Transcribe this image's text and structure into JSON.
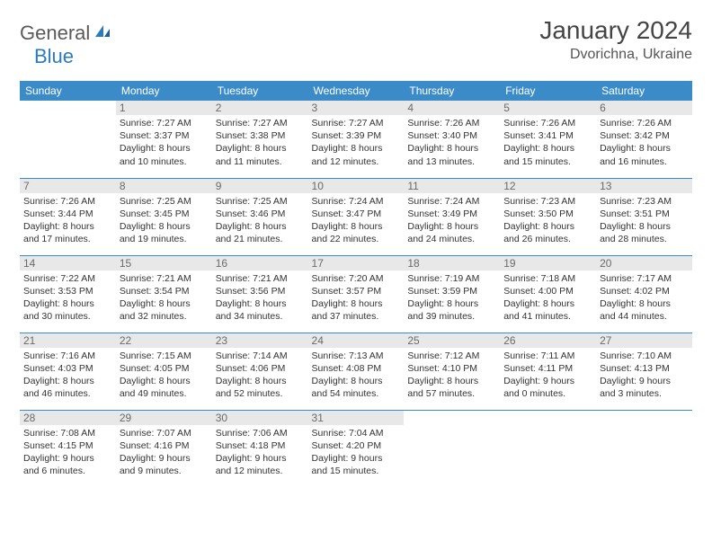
{
  "logo": {
    "general": "General",
    "blue": "Blue"
  },
  "header": {
    "title": "January 2024",
    "location": "Dvorichna, Ukraine"
  },
  "colors": {
    "header_bg": "#3b8bc9",
    "daynum_bg": "#e8e8e8",
    "rule": "#3b8bc9"
  },
  "weekdays": [
    "Sunday",
    "Monday",
    "Tuesday",
    "Wednesday",
    "Thursday",
    "Friday",
    "Saturday"
  ],
  "weeks": [
    [
      null,
      {
        "n": "1",
        "sr": "Sunrise: 7:27 AM",
        "ss": "Sunset: 3:37 PM",
        "d1": "Daylight: 8 hours",
        "d2": "and 10 minutes."
      },
      {
        "n": "2",
        "sr": "Sunrise: 7:27 AM",
        "ss": "Sunset: 3:38 PM",
        "d1": "Daylight: 8 hours",
        "d2": "and 11 minutes."
      },
      {
        "n": "3",
        "sr": "Sunrise: 7:27 AM",
        "ss": "Sunset: 3:39 PM",
        "d1": "Daylight: 8 hours",
        "d2": "and 12 minutes."
      },
      {
        "n": "4",
        "sr": "Sunrise: 7:26 AM",
        "ss": "Sunset: 3:40 PM",
        "d1": "Daylight: 8 hours",
        "d2": "and 13 minutes."
      },
      {
        "n": "5",
        "sr": "Sunrise: 7:26 AM",
        "ss": "Sunset: 3:41 PM",
        "d1": "Daylight: 8 hours",
        "d2": "and 15 minutes."
      },
      {
        "n": "6",
        "sr": "Sunrise: 7:26 AM",
        "ss": "Sunset: 3:42 PM",
        "d1": "Daylight: 8 hours",
        "d2": "and 16 minutes."
      }
    ],
    [
      {
        "n": "7",
        "sr": "Sunrise: 7:26 AM",
        "ss": "Sunset: 3:44 PM",
        "d1": "Daylight: 8 hours",
        "d2": "and 17 minutes."
      },
      {
        "n": "8",
        "sr": "Sunrise: 7:25 AM",
        "ss": "Sunset: 3:45 PM",
        "d1": "Daylight: 8 hours",
        "d2": "and 19 minutes."
      },
      {
        "n": "9",
        "sr": "Sunrise: 7:25 AM",
        "ss": "Sunset: 3:46 PM",
        "d1": "Daylight: 8 hours",
        "d2": "and 21 minutes."
      },
      {
        "n": "10",
        "sr": "Sunrise: 7:24 AM",
        "ss": "Sunset: 3:47 PM",
        "d1": "Daylight: 8 hours",
        "d2": "and 22 minutes."
      },
      {
        "n": "11",
        "sr": "Sunrise: 7:24 AM",
        "ss": "Sunset: 3:49 PM",
        "d1": "Daylight: 8 hours",
        "d2": "and 24 minutes."
      },
      {
        "n": "12",
        "sr": "Sunrise: 7:23 AM",
        "ss": "Sunset: 3:50 PM",
        "d1": "Daylight: 8 hours",
        "d2": "and 26 minutes."
      },
      {
        "n": "13",
        "sr": "Sunrise: 7:23 AM",
        "ss": "Sunset: 3:51 PM",
        "d1": "Daylight: 8 hours",
        "d2": "and 28 minutes."
      }
    ],
    [
      {
        "n": "14",
        "sr": "Sunrise: 7:22 AM",
        "ss": "Sunset: 3:53 PM",
        "d1": "Daylight: 8 hours",
        "d2": "and 30 minutes."
      },
      {
        "n": "15",
        "sr": "Sunrise: 7:21 AM",
        "ss": "Sunset: 3:54 PM",
        "d1": "Daylight: 8 hours",
        "d2": "and 32 minutes."
      },
      {
        "n": "16",
        "sr": "Sunrise: 7:21 AM",
        "ss": "Sunset: 3:56 PM",
        "d1": "Daylight: 8 hours",
        "d2": "and 34 minutes."
      },
      {
        "n": "17",
        "sr": "Sunrise: 7:20 AM",
        "ss": "Sunset: 3:57 PM",
        "d1": "Daylight: 8 hours",
        "d2": "and 37 minutes."
      },
      {
        "n": "18",
        "sr": "Sunrise: 7:19 AM",
        "ss": "Sunset: 3:59 PM",
        "d1": "Daylight: 8 hours",
        "d2": "and 39 minutes."
      },
      {
        "n": "19",
        "sr": "Sunrise: 7:18 AM",
        "ss": "Sunset: 4:00 PM",
        "d1": "Daylight: 8 hours",
        "d2": "and 41 minutes."
      },
      {
        "n": "20",
        "sr": "Sunrise: 7:17 AM",
        "ss": "Sunset: 4:02 PM",
        "d1": "Daylight: 8 hours",
        "d2": "and 44 minutes."
      }
    ],
    [
      {
        "n": "21",
        "sr": "Sunrise: 7:16 AM",
        "ss": "Sunset: 4:03 PM",
        "d1": "Daylight: 8 hours",
        "d2": "and 46 minutes."
      },
      {
        "n": "22",
        "sr": "Sunrise: 7:15 AM",
        "ss": "Sunset: 4:05 PM",
        "d1": "Daylight: 8 hours",
        "d2": "and 49 minutes."
      },
      {
        "n": "23",
        "sr": "Sunrise: 7:14 AM",
        "ss": "Sunset: 4:06 PM",
        "d1": "Daylight: 8 hours",
        "d2": "and 52 minutes."
      },
      {
        "n": "24",
        "sr": "Sunrise: 7:13 AM",
        "ss": "Sunset: 4:08 PM",
        "d1": "Daylight: 8 hours",
        "d2": "and 54 minutes."
      },
      {
        "n": "25",
        "sr": "Sunrise: 7:12 AM",
        "ss": "Sunset: 4:10 PM",
        "d1": "Daylight: 8 hours",
        "d2": "and 57 minutes."
      },
      {
        "n": "26",
        "sr": "Sunrise: 7:11 AM",
        "ss": "Sunset: 4:11 PM",
        "d1": "Daylight: 9 hours",
        "d2": "and 0 minutes."
      },
      {
        "n": "27",
        "sr": "Sunrise: 7:10 AM",
        "ss": "Sunset: 4:13 PM",
        "d1": "Daylight: 9 hours",
        "d2": "and 3 minutes."
      }
    ],
    [
      {
        "n": "28",
        "sr": "Sunrise: 7:08 AM",
        "ss": "Sunset: 4:15 PM",
        "d1": "Daylight: 9 hours",
        "d2": "and 6 minutes."
      },
      {
        "n": "29",
        "sr": "Sunrise: 7:07 AM",
        "ss": "Sunset: 4:16 PM",
        "d1": "Daylight: 9 hours",
        "d2": "and 9 minutes."
      },
      {
        "n": "30",
        "sr": "Sunrise: 7:06 AM",
        "ss": "Sunset: 4:18 PM",
        "d1": "Daylight: 9 hours",
        "d2": "and 12 minutes."
      },
      {
        "n": "31",
        "sr": "Sunrise: 7:04 AM",
        "ss": "Sunset: 4:20 PM",
        "d1": "Daylight: 9 hours",
        "d2": "and 15 minutes."
      },
      null,
      null,
      null
    ]
  ]
}
